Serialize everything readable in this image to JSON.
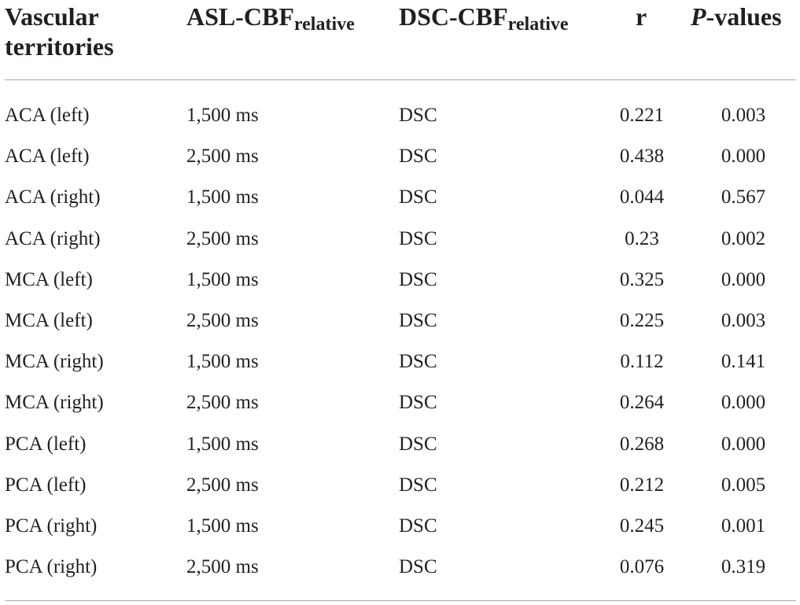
{
  "header": {
    "vascular_line1": "Vascular",
    "vascular_line2": "territories",
    "asl_main": "ASL-CBF",
    "asl_sub": "relative",
    "dsc_main": "DSC-CBF",
    "dsc_sub": "relative",
    "r": "r",
    "p_italic": "P",
    "p_rest": "-values"
  },
  "rows": [
    {
      "territory": "ACA (left)",
      "asl": "1,500 ms",
      "dsc": "DSC",
      "r": "0.221",
      "p": "0.003"
    },
    {
      "territory": "ACA (left)",
      "asl": "2,500 ms",
      "dsc": "DSC",
      "r": "0.438",
      "p": "0.000"
    },
    {
      "territory": "ACA (right)",
      "asl": "1,500 ms",
      "dsc": "DSC",
      "r": "0.044",
      "p": "0.567"
    },
    {
      "territory": "ACA (right)",
      "asl": "2,500 ms",
      "dsc": "DSC",
      "r": "0.23",
      "p": "0.002"
    },
    {
      "territory": "MCA (left)",
      "asl": "1,500 ms",
      "dsc": "DSC",
      "r": "0.325",
      "p": "0.000"
    },
    {
      "territory": "MCA (left)",
      "asl": "2,500 ms",
      "dsc": "DSC",
      "r": "0.225",
      "p": "0.003"
    },
    {
      "territory": "MCA (right)",
      "asl": "1,500 ms",
      "dsc": "DSC",
      "r": "0.112",
      "p": "0.141"
    },
    {
      "territory": "MCA (right)",
      "asl": "2,500 ms",
      "dsc": "DSC",
      "r": "0.264",
      "p": "0.000"
    },
    {
      "territory": "PCA (left)",
      "asl": "1,500 ms",
      "dsc": "DSC",
      "r": "0.268",
      "p": "0.000"
    },
    {
      "territory": "PCA (left)",
      "asl": "2,500 ms",
      "dsc": "DSC",
      "r": "0.212",
      "p": "0.005"
    },
    {
      "territory": "PCA (right)",
      "asl": "1,500 ms",
      "dsc": "DSC",
      "r": "0.245",
      "p": "0.001"
    },
    {
      "territory": "PCA (right)",
      "asl": "2,500 ms",
      "dsc": "DSC",
      "r": "0.076",
      "p": "0.319"
    }
  ],
  "colors": {
    "text": "#231f20",
    "rule": "#a7a9ac",
    "background": "#ffffff"
  }
}
